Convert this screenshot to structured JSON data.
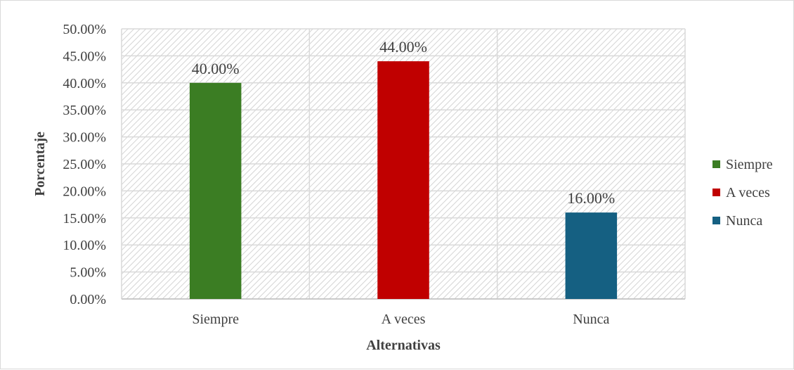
{
  "chart_data": {
    "type": "bar",
    "title": "",
    "xlabel": "Alternativas",
    "ylabel": "Porcentaje",
    "categories": [
      "Siempre",
      "A veces",
      "Nunca"
    ],
    "values": [
      40,
      44,
      16
    ],
    "value_labels": [
      "40.00%",
      "44.00%",
      "16.00%"
    ],
    "colors": [
      "#3b7d23",
      "#c00000",
      "#156082"
    ],
    "ylim": [
      0,
      50
    ],
    "ytick_step": 5,
    "ytick_labels": [
      "0.00%",
      "5.00%",
      "10.00%",
      "15.00%",
      "20.00%",
      "25.00%",
      "30.00%",
      "35.00%",
      "40.00%",
      "45.00%",
      "50.00%"
    ],
    "grid": true,
    "plot_background": "diagonal-hatch",
    "legend": {
      "position": "right",
      "entries": [
        "Siempre",
        "A veces",
        "Nunca"
      ]
    }
  }
}
